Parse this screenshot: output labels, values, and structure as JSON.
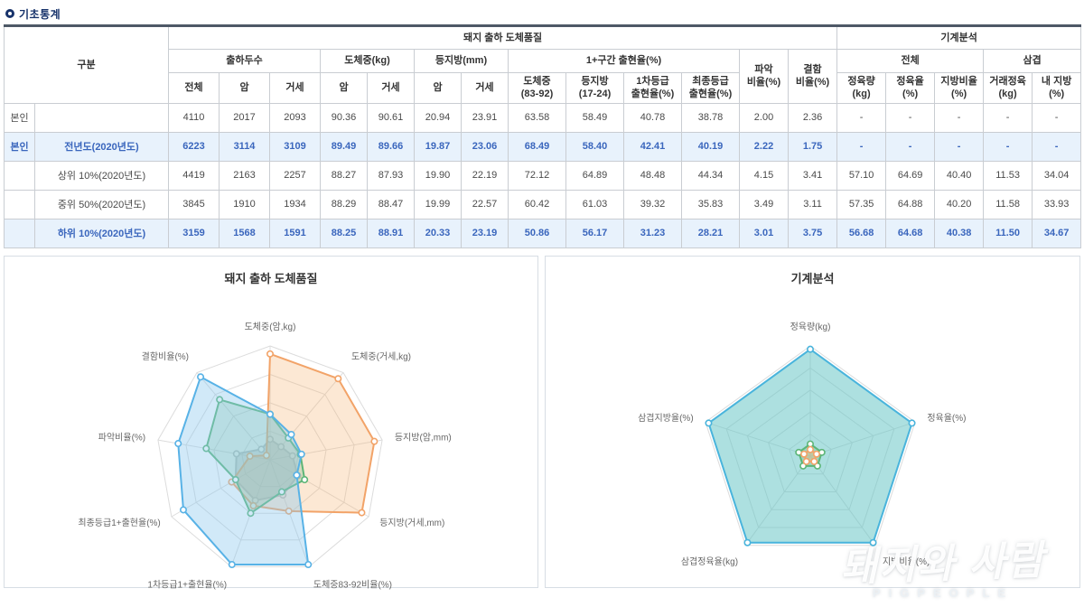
{
  "page": {
    "title": "기초통계"
  },
  "table": {
    "header_rows": [
      [
        {
          "label": "구분",
          "colspan": 2,
          "rowspan": 3
        },
        {
          "label": "돼지 출하 도체품질",
          "colspan": 13,
          "rowspan": 1
        },
        {
          "label": "기계분석",
          "colspan": 5,
          "rowspan": 1
        }
      ],
      [
        {
          "label": "출하두수",
          "colspan": 3,
          "rowspan": 1
        },
        {
          "label": "도체중(kg)",
          "colspan": 2,
          "rowspan": 1
        },
        {
          "label": "등지방(mm)",
          "colspan": 2,
          "rowspan": 1
        },
        {
          "label": "1+구간 출현율(%)",
          "colspan": 4,
          "rowspan": 1
        },
        {
          "label": "파악\n비율(%)",
          "colspan": 1,
          "rowspan": 2
        },
        {
          "label": "결함\n비율(%)",
          "colspan": 1,
          "rowspan": 2
        },
        {
          "label": "전체",
          "colspan": 3,
          "rowspan": 1
        },
        {
          "label": "삼겹",
          "colspan": 2,
          "rowspan": 1
        }
      ],
      [
        {
          "label": "전체"
        },
        {
          "label": "암"
        },
        {
          "label": "거세"
        },
        {
          "label": "암"
        },
        {
          "label": "거세"
        },
        {
          "label": "암"
        },
        {
          "label": "거세"
        },
        {
          "label": "도체중\n(83-92)"
        },
        {
          "label": "등지방\n(17-24)"
        },
        {
          "label": "1차등급\n출현율(%)"
        },
        {
          "label": "최종등급\n출현율(%)"
        },
        {
          "label": "정육량\n(kg)"
        },
        {
          "label": "정육율\n(%)"
        },
        {
          "label": "지방비율\n(%)"
        },
        {
          "label": "거래정육\n(kg)"
        },
        {
          "label": "내 지방\n(%)"
        }
      ]
    ],
    "rows": [
      {
        "group": "본인",
        "label": "",
        "highlighted": false,
        "values": [
          "4110",
          "2017",
          "2093",
          "90.36",
          "90.61",
          "20.94",
          "23.91",
          "63.58",
          "58.49",
          "40.78",
          "38.78",
          "2.00",
          "2.36",
          "-",
          "-",
          "-",
          "-",
          "-"
        ]
      },
      {
        "group": "본인",
        "label": "전년도(2020년도)",
        "highlighted": true,
        "values": [
          "6223",
          "3114",
          "3109",
          "89.49",
          "89.66",
          "19.87",
          "23.06",
          "68.49",
          "58.40",
          "42.41",
          "40.19",
          "2.22",
          "1.75",
          "-",
          "-",
          "-",
          "-",
          "-"
        ]
      },
      {
        "group": "",
        "label": "상위 10%(2020년도)",
        "highlighted": false,
        "values": [
          "4419",
          "2163",
          "2257",
          "88.27",
          "87.93",
          "19.90",
          "22.19",
          "72.12",
          "64.89",
          "48.48",
          "44.34",
          "4.15",
          "3.41",
          "57.10",
          "64.69",
          "40.40",
          "11.53",
          "34.04"
        ]
      },
      {
        "group": "",
        "label": "중위 50%(2020년도)",
        "highlighted": false,
        "values": [
          "3845",
          "1910",
          "1934",
          "88.29",
          "88.47",
          "19.99",
          "22.57",
          "60.42",
          "61.03",
          "39.32",
          "35.83",
          "3.49",
          "3.11",
          "57.35",
          "64.88",
          "40.20",
          "11.58",
          "33.93"
        ]
      },
      {
        "group": "",
        "label": "하위 10%(2020년도)",
        "highlighted": true,
        "values": [
          "3159",
          "1568",
          "1591",
          "88.25",
          "88.91",
          "20.33",
          "23.19",
          "50.86",
          "56.17",
          "31.23",
          "28.21",
          "3.01",
          "3.75",
          "56.68",
          "64.68",
          "40.38",
          "11.50",
          "34.67"
        ]
      }
    ]
  },
  "chart_data": [
    {
      "type": "radar",
      "title": "돼지 출하 도체품질",
      "axes": [
        "도체중(암,kg)",
        "도체중(거세,kg)",
        "등지방(암,mm)",
        "등지방(거세,mm)",
        "도체중83-92비율(%)",
        "1차등급1+출현율(%)",
        "최종등급1+출현율(%)",
        "파악비율(%)",
        "결함비율(%)"
      ],
      "levels": 4,
      "legend_shown": false,
      "series": [
        {
          "name": "gray",
          "color": "#b9bcc0",
          "fill": "rgba(165,168,172,0.35)",
          "values_normalized": [
            0.18,
            0.15,
            0.2,
            0.28,
            0.33,
            0.38,
            0.35,
            0.3,
            0.12
          ]
        },
        {
          "name": "orange",
          "color": "#f2a368",
          "fill": "rgba(247,183,121,0.32)",
          "values_normalized": [
            0.93,
            0.93,
            0.93,
            0.93,
            0.48,
            0.43,
            0.39,
            0.18,
            0.05
          ]
        },
        {
          "name": "green",
          "color": "#5cb577",
          "fill": "rgba(120,190,140,0.30)",
          "values_normalized": [
            0.4,
            0.25,
            0.27,
            0.35,
            0.3,
            0.5,
            0.35,
            0.57,
            0.69
          ]
        },
        {
          "name": "blue",
          "color": "#58b2e6",
          "fill": "rgba(140,200,238,0.40)",
          "values_normalized": [
            0.4,
            0.29,
            0.28,
            0.27,
            0.98,
            0.98,
            0.88,
            0.82,
            0.95
          ]
        }
      ]
    },
    {
      "type": "radar",
      "title": "기계분석",
      "axes": [
        "정육량(kg)",
        "정육율(%)",
        "지방비율(%)",
        "삼겹정육율(kg)",
        "삼겹지방율(%)"
      ],
      "levels": 5,
      "legend_shown": false,
      "series": [
        {
          "name": "teal-large",
          "color": "#49b4dc",
          "fill": "rgba(106,199,199,0.55)",
          "values_normalized": [
            0.97,
            0.97,
            0.97,
            0.97,
            0.97
          ]
        },
        {
          "name": "green-small",
          "color": "#5cb577",
          "fill": "rgba(120,190,140,0.35)",
          "values_normalized": [
            0.11,
            0.11,
            0.11,
            0.11,
            0.11
          ]
        },
        {
          "name": "orange-small",
          "color": "#f2a368",
          "fill": "rgba(247,183,121,0.40)",
          "values_normalized": [
            0.06,
            0.06,
            0.06,
            0.06,
            0.06
          ]
        }
      ]
    }
  ],
  "watermark": {
    "line1": "돼지와 사람",
    "line2": "PIGPEOPLE"
  }
}
